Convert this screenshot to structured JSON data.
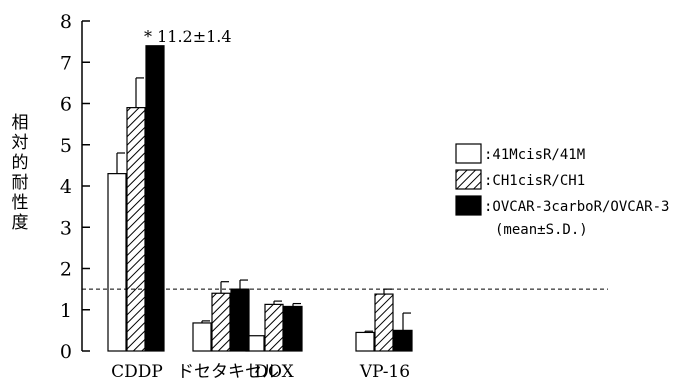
{
  "chart_data": {
    "type": "bar",
    "ylabel": "相対的耐性度",
    "ylim": [
      0,
      8
    ],
    "yticks": [
      0,
      1,
      2,
      3,
      4,
      5,
      6,
      7,
      8
    ],
    "categories": [
      "CDDP",
      "ドセタキセル",
      "DOX",
      "VP-16"
    ],
    "series": [
      {
        "name": ":41McisR/41M",
        "fill": "white",
        "values": [
          4.3,
          0.68,
          0.37,
          0.45
        ],
        "errors": [
          0.5,
          0.05,
          0.0,
          0.03
        ]
      },
      {
        "name": ":CH1cisR/CH1",
        "fill": "hatch",
        "values": [
          5.9,
          1.4,
          1.13,
          1.38
        ],
        "errors": [
          0.72,
          0.28,
          0.08,
          0.12
        ]
      },
      {
        "name": ":OVCAR-3carboR/OVCAR-3",
        "fill": "black",
        "values": [
          7.4,
          1.5,
          1.08,
          0.5
        ],
        "errors": [
          0.0,
          0.22,
          0.07,
          0.42
        ]
      }
    ],
    "reference_line": 1.5,
    "annotation": "* 11.2±1.4",
    "legend_note": "(mean±S.D.)",
    "grid": false,
    "legend_position": "right"
  },
  "colors": {
    "axis": "#000000",
    "black_bar": "#000000",
    "white_bar": "#ffffff"
  }
}
